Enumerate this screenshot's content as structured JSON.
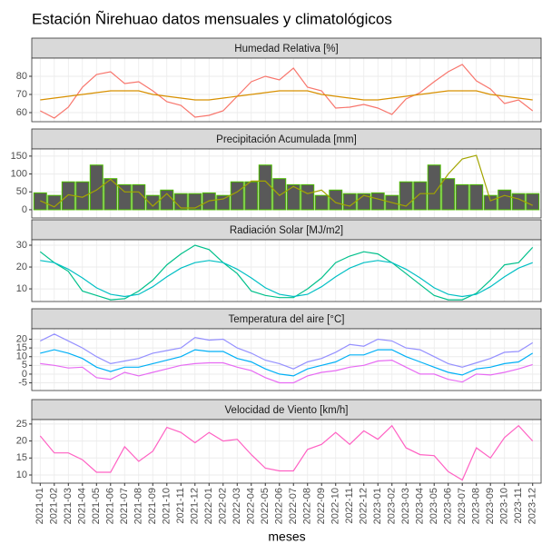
{
  "title": "Estación Ñirehuao datos mensuales y climatológicos",
  "x_label": "meses",
  "x": [
    "2021-01",
    "2021-02",
    "2021-03",
    "2021-04",
    "2021-05",
    "2021-06",
    "2021-07",
    "2021-08",
    "2021-09",
    "2021-10",
    "2021-11",
    "2021-12",
    "2022-01",
    "2022-02",
    "2022-03",
    "2022-04",
    "2022-05",
    "2022-06",
    "2022-07",
    "2022-08",
    "2022-09",
    "2022-10",
    "2022-11",
    "2022-12",
    "2023-01",
    "2023-02",
    "2023-03",
    "2023-04",
    "2023-05",
    "2023-06",
    "2023-07",
    "2023-08",
    "2023-09",
    "2023-10",
    "2023-11",
    "2023-12"
  ],
  "chart_data": [
    {
      "type": "line",
      "title": "Humedad Relativa [%]",
      "ylim": [
        55,
        90
      ],
      "yticks": [
        60,
        70,
        80
      ],
      "grid": true,
      "series": [
        {
          "type": "line",
          "color": "#f8766d",
          "values": [
            61,
            57,
            63,
            74,
            81,
            82.5,
            76,
            77,
            72,
            66,
            64,
            57.5,
            58.5,
            61,
            69,
            77,
            80,
            78,
            84.5,
            74,
            72,
            62.5,
            63,
            64.5,
            62.5,
            59,
            67.5,
            71,
            77,
            82.5,
            86.5,
            77.5,
            73,
            65,
            67,
            61
          ]
        },
        {
          "type": "line",
          "color": "#d89000",
          "values": [
            67,
            68,
            69,
            70,
            71,
            72,
            72,
            72,
            70,
            69,
            68,
            67,
            67,
            68,
            69,
            70,
            71,
            72,
            72,
            72,
            70,
            69,
            68,
            67,
            67,
            68,
            69,
            70,
            71,
            72,
            72,
            72,
            70,
            69,
            68,
            67
          ]
        }
      ]
    },
    {
      "type": "bar",
      "title": "Precipitación Acumulada [mm]",
      "ylim": [
        -23,
        170
      ],
      "yticks": [
        0,
        50,
        100,
        150
      ],
      "grid": true,
      "series": [
        {
          "type": "bar",
          "color": "#595959",
          "edgecolor": "#4dbd00",
          "values": [
            47,
            40,
            78,
            78,
            125,
            87,
            70,
            70,
            40,
            55,
            45,
            45,
            47,
            40,
            78,
            78,
            125,
            87,
            70,
            70,
            40,
            55,
            45,
            45,
            47,
            40,
            78,
            78,
            125,
            87,
            70,
            70,
            40,
            55,
            45,
            45
          ]
        },
        {
          "type": "line",
          "color": "#a3a500",
          "values": [
            25,
            8,
            42,
            35,
            55,
            85,
            50,
            50,
            10,
            45,
            5,
            5,
            25,
            30,
            50,
            80,
            80,
            40,
            65,
            45,
            55,
            20,
            10,
            40,
            30,
            20,
            10,
            45,
            45,
            100,
            142,
            152,
            25,
            40,
            30,
            12
          ]
        }
      ]
    },
    {
      "type": "line",
      "title": "Radiación Solar [MJ/m2]",
      "ylim": [
        4.2,
        32.5
      ],
      "yticks": [
        10,
        20,
        30
      ],
      "grid": true,
      "series": [
        {
          "type": "line",
          "color": "#00c08b",
          "values": [
            27,
            22,
            18,
            9,
            7,
            5,
            5.5,
            9,
            14,
            21,
            26,
            30,
            28,
            22,
            17,
            9,
            7,
            6,
            6,
            10,
            15,
            22,
            25,
            27,
            26,
            22,
            17,
            12,
            7,
            5,
            5,
            8,
            14,
            21,
            22,
            29
          ]
        },
        {
          "type": "line",
          "color": "#00bfc4",
          "values": [
            23,
            22,
            19,
            15,
            10.5,
            7.5,
            6.5,
            7.5,
            11,
            15.5,
            19.5,
            22,
            23,
            22,
            19,
            15,
            10.5,
            7.5,
            6.5,
            7.5,
            11,
            15.5,
            19.5,
            22,
            23,
            22,
            19,
            15,
            10.5,
            7.5,
            6.5,
            7.5,
            11,
            15.5,
            19.5,
            22
          ]
        }
      ]
    },
    {
      "type": "line",
      "title": "Temperatura del aire [°C]",
      "ylim": [
        -9.4,
        26
      ],
      "yticks": [
        -5,
        0,
        5,
        10,
        15,
        20
      ],
      "grid": true,
      "series": [
        {
          "type": "line",
          "color": "#9590ff",
          "values": [
            19,
            23,
            19,
            15,
            10,
            6,
            7.5,
            9,
            12,
            13.5,
            15,
            21,
            19.5,
            20,
            15,
            12,
            8,
            6,
            3,
            7,
            9,
            12.5,
            17,
            16,
            20,
            19,
            15,
            14,
            10,
            6,
            4,
            6.5,
            9,
            12.5,
            13,
            18
          ]
        },
        {
          "type": "line",
          "color": "#00b0f6",
          "values": [
            12,
            14,
            12,
            9,
            4,
            1.5,
            4,
            4,
            6,
            8,
            10,
            14,
            13,
            13,
            9,
            7,
            3,
            0,
            -1,
            3,
            5,
            7,
            11,
            11,
            14,
            14,
            10,
            7,
            4,
            1,
            -0.5,
            3,
            4,
            6,
            7,
            12
          ]
        },
        {
          "type": "line",
          "color": "#e76bf3",
          "values": [
            6,
            5,
            3.5,
            4,
            -2,
            -3,
            1,
            -1,
            1,
            3,
            5,
            6,
            6.5,
            6.5,
            4,
            2,
            -2,
            -5,
            -5,
            -1,
            1,
            2,
            4,
            5,
            7.5,
            8,
            4,
            0,
            0,
            -3,
            -4.5,
            0,
            -0.5,
            1,
            3,
            5.5
          ]
        }
      ]
    },
    {
      "type": "line",
      "title": "Velocidad de Viento [km/h]",
      "ylim": [
        7.6,
        26.3
      ],
      "yticks": [
        10,
        15,
        20,
        25
      ],
      "grid": true,
      "series": [
        {
          "type": "line",
          "color": "#ff61c3",
          "values": [
            21.5,
            16.5,
            16.5,
            14.5,
            10.8,
            10.8,
            18.3,
            14,
            17,
            24,
            22.5,
            19.5,
            22.5,
            20,
            20.5,
            16,
            12,
            11.2,
            11.2,
            17.5,
            19,
            22.5,
            19,
            23,
            20.5,
            24.5,
            18,
            16,
            15.7,
            11,
            8.5,
            18,
            15,
            21,
            24.5,
            20
          ]
        }
      ]
    }
  ]
}
